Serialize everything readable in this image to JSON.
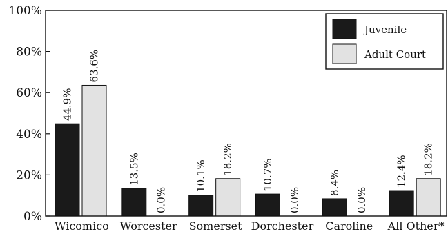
{
  "chart_data": {
    "type": "bar",
    "title": "",
    "xlabel": "",
    "ylabel": "",
    "categories": [
      "Wicomico",
      "Worcester",
      "Somerset",
      "Dorchester",
      "Caroline",
      "All Other*"
    ],
    "series": [
      {
        "name": "Juvenile",
        "values": [
          44.9,
          13.5,
          10.1,
          10.7,
          8.4,
          12.4
        ],
        "color": "#1a1a1a"
      },
      {
        "name": "Adult Court",
        "values": [
          63.6,
          0.0,
          18.2,
          0.0,
          0.0,
          18.2
        ],
        "color": "#e2e2e2"
      }
    ],
    "data_labels": [
      [
        "44.9%",
        "13.5%",
        "10.1%",
        "10.7%",
        "8.4%",
        "12.4%"
      ],
      [
        "63.6%",
        "0.0%",
        "18.2%",
        "0.0%",
        "0.0%",
        "18.2%"
      ]
    ],
    "yticks": [
      0,
      20,
      40,
      60,
      80,
      100
    ],
    "ytick_labels": [
      "0%",
      "20%",
      "40%",
      "60%",
      "80%",
      "100%"
    ],
    "ylim": [
      0,
      100
    ],
    "grid": false,
    "legend_position": "top-right"
  }
}
